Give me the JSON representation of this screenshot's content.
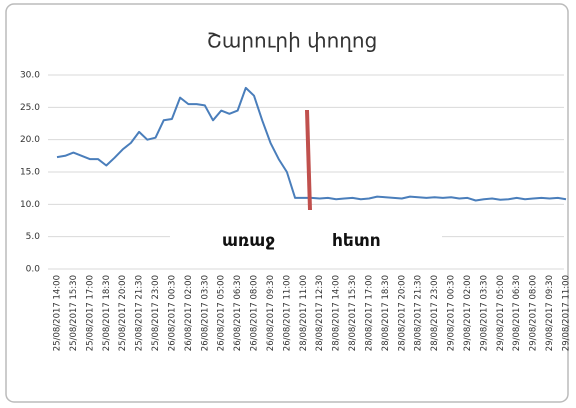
{
  "chart_data": {
    "type": "line",
    "title": "Շարուրի փողոց",
    "annotations": [
      "առաջ",
      "հետո"
    ],
    "categories": [
      "25/08/2017 14:00",
      null,
      "25/08/2017 15:30",
      null,
      "25/08/2017 17:00",
      null,
      "25/08/2017 18:30",
      null,
      "25/08/2017 20:00",
      null,
      "25/08/2017 21:30",
      null,
      "25/08/2017 23:00",
      null,
      "26/08/2017 00:30",
      null,
      "26/08/2017 02:00",
      null,
      "26/08/2017 03:30",
      null,
      "26/08/2017 05:00",
      null,
      "26/08/2017 06:30",
      null,
      "26/08/2017 08:00",
      null,
      "26/08/2017 09:30",
      null,
      "26/08/2017 11:00",
      null,
      "28/08/2017 11:00",
      null,
      "28/08/2017 12:30",
      null,
      "28/08/2017 14:00",
      null,
      "28/08/2017 15:30",
      null,
      "28/08/2017 17:00",
      null,
      "28/08/2017 18:30",
      null,
      "28/08/2017 20:00",
      null,
      "28/08/2017 21:30",
      null,
      "28/08/2017 23:00",
      null,
      "29/08/2017 00:30",
      null,
      "29/08/2017 02:00",
      null,
      "29/08/2017 03:30",
      null,
      "29/08/2017 05:00",
      null,
      "29/08/2017 06:30",
      null,
      "29/08/2017 08:00",
      null,
      "29/08/2017 09:30",
      null,
      "29/08/2017 11:00"
    ],
    "values": [
      17.3,
      17.5,
      18.0,
      17.5,
      17.0,
      17.0,
      16.0,
      17.2,
      18.5,
      19.5,
      21.2,
      20.0,
      20.3,
      23.0,
      23.2,
      26.5,
      25.5,
      25.5,
      25.3,
      23.0,
      24.5,
      24.0,
      24.5,
      28.0,
      26.8,
      23.0,
      19.5,
      17.0,
      15.0,
      11.0,
      11.0,
      11.0,
      10.9,
      11.0,
      10.8,
      10.9,
      11.0,
      10.8,
      10.9,
      11.2,
      11.1,
      11.0,
      10.9,
      11.2,
      11.1,
      11.0,
      11.1,
      11.0,
      11.1,
      10.9,
      11.0,
      10.6,
      10.8,
      10.9,
      10.7,
      10.8,
      11.0,
      10.8,
      10.9,
      11.0,
      10.9,
      11.0,
      10.8
    ],
    "color": "#4a7ebb",
    "ylim": [
      0,
      30
    ],
    "yticks": [
      {
        "value": 0,
        "label": "0.0"
      },
      {
        "value": 5,
        "label": "5.0"
      },
      {
        "value": 10,
        "label": "10.0"
      },
      {
        "value": 15,
        "label": "15.0"
      },
      {
        "value": 20,
        "label": "20.0"
      },
      {
        "value": 25,
        "label": "25.0"
      },
      {
        "value": 30,
        "label": "30.0"
      }
    ],
    "grid": true
  }
}
